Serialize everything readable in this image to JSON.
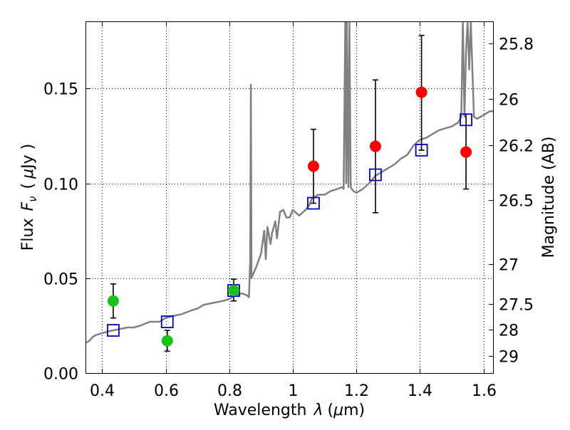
{
  "chart_data": {
    "type": "scatter",
    "xlabel": "Wavelength",
    "xlabel_symbol": "λ",
    "xlabel_unit_open": "(",
    "xlabel_unit_mu": "μ",
    "xlabel_unit_rest": "m)",
    "ylabel_left": "Flux",
    "ylabel_symbol": "F",
    "ylabel_subscript": "ν",
    "ylabel_unit_open": "(",
    "ylabel_unit_mu": "μ",
    "ylabel_unit_rest": "Jy )",
    "ylabel_right": "Magnitude (AB)",
    "xlim": [
      0.35,
      1.63
    ],
    "ylim": [
      0.0,
      0.185
    ],
    "x_ticks": [
      {
        "v": 0.4,
        "label": "0.4"
      },
      {
        "v": 0.6,
        "label": "0.6"
      },
      {
        "v": 0.8,
        "label": "0.8"
      },
      {
        "v": 1.0,
        "label": "1"
      },
      {
        "v": 1.2,
        "label": "1.2"
      },
      {
        "v": 1.4,
        "label": "1.4"
      },
      {
        "v": 1.6,
        "label": "1.6"
      }
    ],
    "y_ticks": [
      {
        "v": 0.0,
        "label": "0.00"
      },
      {
        "v": 0.05,
        "label": "0.05"
      },
      {
        "v": 0.1,
        "label": "0.10"
      },
      {
        "v": 0.15,
        "label": "0.15"
      }
    ],
    "mag_ticks": [
      {
        "mag": 25.8,
        "label": "25.8"
      },
      {
        "mag": 26.0,
        "label": "26"
      },
      {
        "mag": 26.2,
        "label": "26.2"
      },
      {
        "mag": 26.5,
        "label": "26.5"
      },
      {
        "mag": 27.0,
        "label": "27"
      },
      {
        "mag": 27.5,
        "label": "27.5"
      },
      {
        "mag": 28.0,
        "label": "28"
      },
      {
        "mag": 29.0,
        "label": "29"
      }
    ],
    "grid": true,
    "colors": {
      "spectrum": "#808080",
      "model": "#0000cc",
      "optical": "#19c219",
      "infrared": "#ff0000",
      "errorbar": "#000000",
      "grid": "#000000"
    },
    "series": [
      {
        "name": "model-spectrum",
        "kind": "line",
        "x": [
          0.35,
          0.36,
          0.37,
          0.38,
          0.4,
          0.42,
          0.45,
          0.48,
          0.5,
          0.52,
          0.55,
          0.58,
          0.6,
          0.62,
          0.65,
          0.68,
          0.7,
          0.72,
          0.75,
          0.78,
          0.8,
          0.82,
          0.84,
          0.855,
          0.862,
          0.866,
          0.868,
          0.87,
          0.875,
          0.885,
          0.9,
          0.91,
          0.915,
          0.92,
          0.93,
          0.935,
          0.945,
          0.95,
          0.96,
          0.97,
          0.98,
          0.99,
          1.0,
          1.02,
          1.04,
          1.05,
          1.06,
          1.08,
          1.1,
          1.12,
          1.14,
          1.155,
          1.16,
          1.165,
          1.168,
          1.17,
          1.175,
          1.178,
          1.182,
          1.19,
          1.2,
          1.22,
          1.24,
          1.26,
          1.28,
          1.3,
          1.32,
          1.34,
          1.36,
          1.38,
          1.4,
          1.42,
          1.44,
          1.46,
          1.48,
          1.5,
          1.52,
          1.53,
          1.535,
          1.54,
          1.545,
          1.55,
          1.555,
          1.56,
          1.57,
          1.58,
          1.59,
          1.6,
          1.61,
          1.62,
          1.63
        ],
        "y": [
          0.016,
          0.017,
          0.019,
          0.02,
          0.021,
          0.022,
          0.023,
          0.024,
          0.024,
          0.025,
          0.027,
          0.027,
          0.029,
          0.03,
          0.031,
          0.033,
          0.034,
          0.036,
          0.037,
          0.038,
          0.039,
          0.041,
          0.042,
          0.041,
          0.04,
          0.06,
          0.152,
          0.05,
          0.052,
          0.056,
          0.063,
          0.075,
          0.06,
          0.077,
          0.068,
          0.074,
          0.08,
          0.071,
          0.085,
          0.086,
          0.082,
          0.082,
          0.086,
          0.083,
          0.086,
          0.088,
          0.092,
          0.094,
          0.094,
          0.096,
          0.097,
          0.098,
          0.097,
          0.185,
          0.1,
          0.185,
          0.098,
          0.185,
          0.098,
          0.096,
          0.095,
          0.097,
          0.1,
          0.104,
          0.106,
          0.108,
          0.11,
          0.113,
          0.115,
          0.12,
          0.123,
          0.124,
          0.126,
          0.128,
          0.129,
          0.13,
          0.132,
          0.135,
          0.185,
          0.135,
          0.17,
          0.185,
          0.16,
          0.185,
          0.135,
          0.134,
          0.135,
          0.136,
          0.137,
          0.138,
          0.138
        ]
      },
      {
        "name": "model-photometry",
        "kind": "square",
        "x": [
          0.435,
          0.605,
          0.814,
          1.065,
          1.26,
          1.405,
          1.545
        ],
        "y": [
          0.0225,
          0.027,
          0.0435,
          0.0895,
          0.1045,
          0.1175,
          0.1335
        ]
      },
      {
        "name": "optical-observations",
        "kind": "circle",
        "x": [
          0.435,
          0.605,
          0.814
        ],
        "y": [
          0.038,
          0.017,
          0.0435
        ],
        "err_low": [
          0.029,
          0.0115,
          0.038
        ],
        "err_high": [
          0.047,
          0.0225,
          0.0495
        ]
      },
      {
        "name": "infrared-observations",
        "kind": "circle",
        "x": [
          1.065,
          1.26,
          1.405,
          1.545
        ],
        "y": [
          0.109,
          0.1195,
          0.148,
          0.1165
        ],
        "err_low": [
          0.0895,
          0.0845,
          0.1175,
          0.097
        ],
        "err_high": [
          0.1285,
          0.1545,
          0.178,
          0.1365
        ]
      }
    ]
  }
}
